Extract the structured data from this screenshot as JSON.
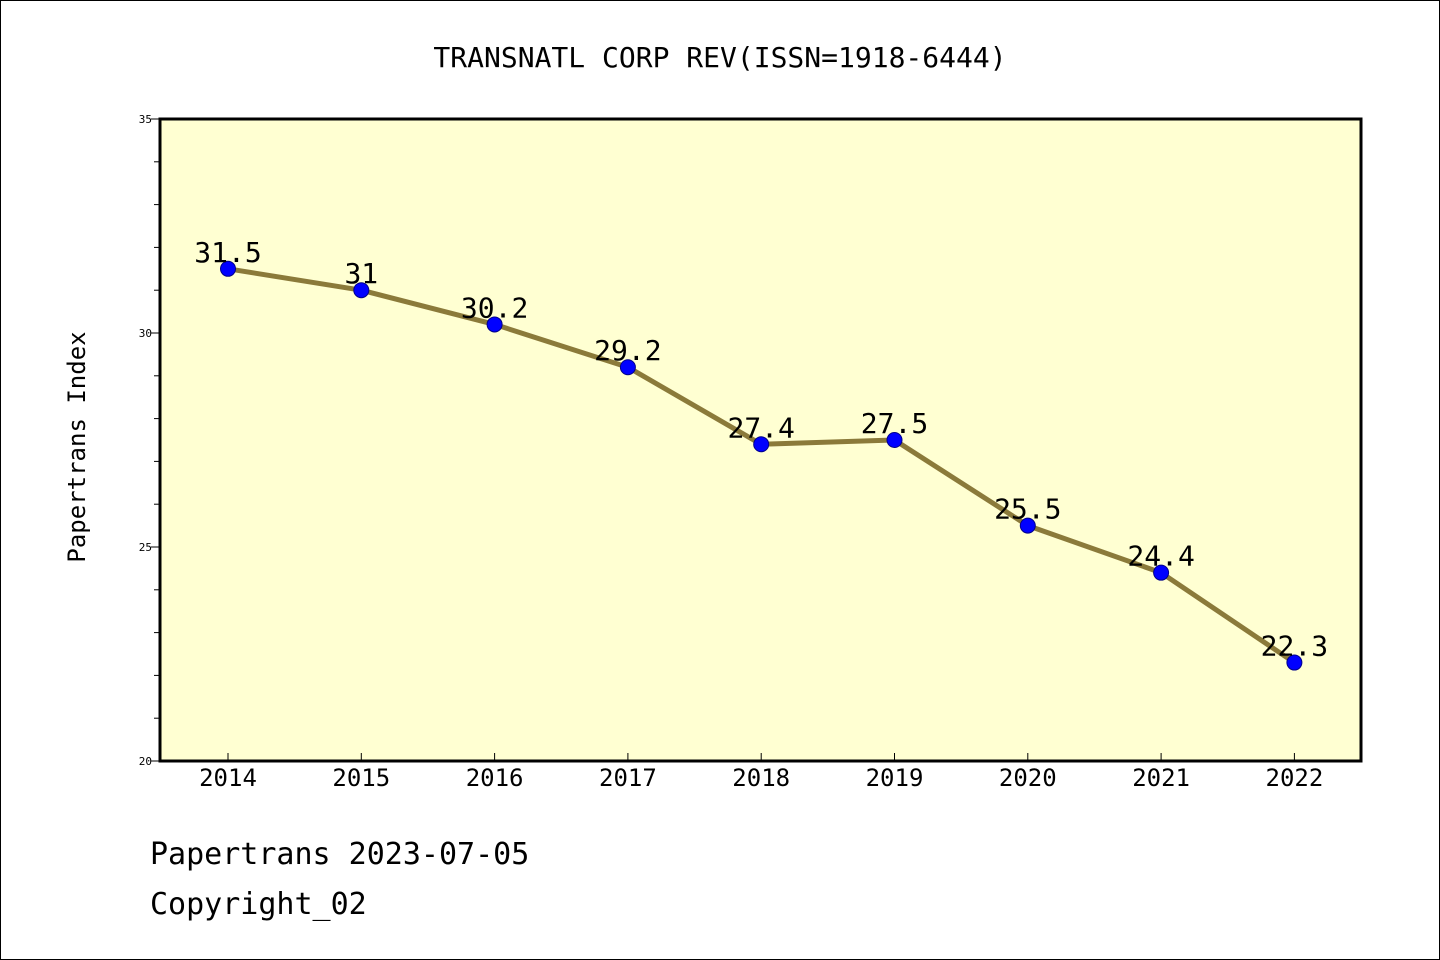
{
  "chart_data": {
    "type": "line",
    "title": "TRANSNATL CORP REV(ISSN=1918-6444)",
    "xlabel": "",
    "ylabel": "Papertrans Index",
    "x": [
      "2014",
      "2015",
      "2016",
      "2017",
      "2018",
      "2019",
      "2020",
      "2021",
      "2022"
    ],
    "series": [
      {
        "values": [
          31.5,
          31.0,
          30.2,
          29.2,
          27.4,
          27.5,
          25.5,
          24.4,
          22.3
        ]
      }
    ],
    "data_labels": [
      "31.5",
      "31",
      "30.2",
      "29.2",
      "27.4",
      "27.5",
      "25.5",
      "24.4",
      "22.3"
    ],
    "ylim": [
      20,
      35
    ],
    "yticks": [
      20,
      25,
      30,
      35
    ],
    "ytick_labels": [
      "20",
      "25",
      "30",
      "35"
    ],
    "grid": false,
    "legend": "none",
    "colors": {
      "plot_background": "#ffffd2",
      "line": "#8b7a3a",
      "marker": "#0000ff",
      "frame": "#000000"
    }
  },
  "footer": {
    "source_line": "Papertrans 2023-07-05",
    "copyright_line": "Copyright_02"
  }
}
